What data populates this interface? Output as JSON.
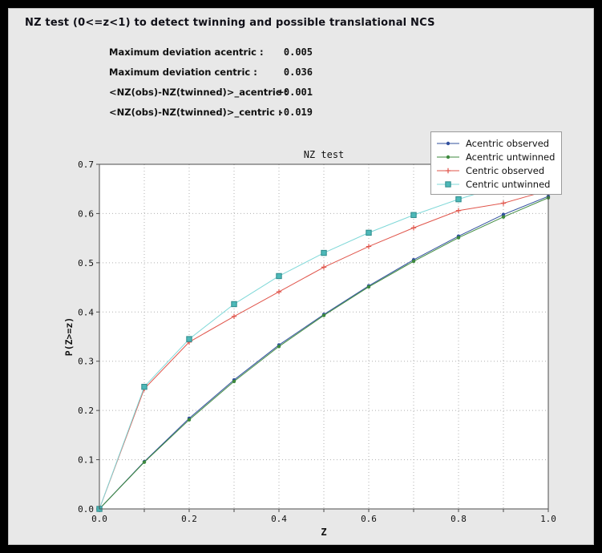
{
  "window": {
    "bg": "#000000",
    "panel_bg": "#e8e8e8"
  },
  "header": {
    "title": "NZ test (0<=z<1) to detect twinning and possible translational NCS"
  },
  "stats": [
    {
      "label": "Maximum deviation acentric :",
      "value": "0.005"
    },
    {
      "label": "Maximum deviation centric :",
      "value": "0.036"
    },
    {
      "label": "<NZ(obs)-NZ(twinned)>_acentric :",
      "value": "+0.001"
    },
    {
      "label": "<NZ(obs)-NZ(twinned)>_centric :",
      "value": "-0.019"
    }
  ],
  "chart_data": {
    "type": "line",
    "title": "NZ test",
    "xlabel": "Z",
    "ylabel": "P(Z>=z)",
    "xlim": [
      0.0,
      1.0
    ],
    "ylim": [
      0.0,
      0.7
    ],
    "grid": true,
    "grid_interval": 0.1,
    "legend_position": "upper right",
    "xticks": {
      "values": [
        0.0,
        0.2,
        0.4,
        0.6,
        0.8,
        1.0
      ],
      "labels": [
        "0.0",
        "0.2",
        "0.4",
        "0.6",
        "0.8",
        "1.0"
      ]
    },
    "yticks": {
      "values": [
        0.0,
        0.1,
        0.2,
        0.3,
        0.4,
        0.5,
        0.6,
        0.7
      ],
      "labels": [
        "0.0",
        "0.1",
        "0.2",
        "0.3",
        "0.4",
        "0.5",
        "0.6",
        "0.7"
      ]
    },
    "x": [
      0.0,
      0.1,
      0.2,
      0.3,
      0.4,
      0.5,
      0.6,
      0.7,
      0.8,
      0.9,
      1.0
    ],
    "series": [
      {
        "name": "Acentric observed",
        "color": "#31509e",
        "marker": "dot",
        "values": [
          0.0,
          0.096,
          0.184,
          0.262,
          0.333,
          0.395,
          0.453,
          0.506,
          0.554,
          0.598,
          0.635
        ]
      },
      {
        "name": "Acentric untwinned",
        "color": "#3e8a3e",
        "marker": "dot",
        "values": [
          0.0,
          0.095,
          0.181,
          0.259,
          0.33,
          0.393,
          0.451,
          0.503,
          0.551,
          0.593,
          0.632
        ]
      },
      {
        "name": "Centric observed",
        "color": "#e0544a",
        "marker": "plus",
        "values": [
          0.0,
          0.244,
          0.339,
          0.391,
          0.441,
          0.491,
          0.533,
          0.571,
          0.606,
          0.621,
          0.647
        ]
      },
      {
        "name": "Centric untwinned",
        "color": "#7fd8d8",
        "marker": "square",
        "marker_fill": "#4db8b8",
        "marker_edge": "#2e8b8b",
        "values": [
          0.0,
          0.248,
          0.345,
          0.416,
          0.473,
          0.52,
          0.561,
          0.597,
          0.629,
          0.657,
          0.683
        ]
      }
    ],
    "colors": {
      "plot_bg": "#ffffff",
      "grid": "#b0b0b0",
      "axis": "#4d4d4d",
      "text": "#111111"
    }
  }
}
